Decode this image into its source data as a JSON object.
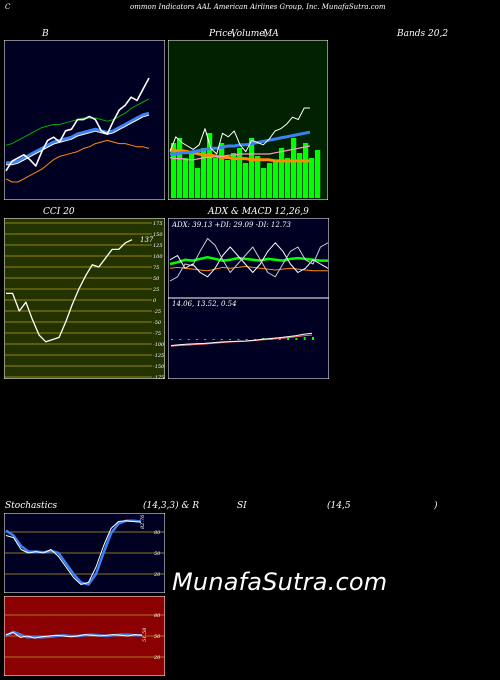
{
  "header": {
    "title": "Common Indicators AAL American Airlines Group, Inc. MunafaSutra.com",
    "part_c": "C",
    "part_rest": "ommon  Indicators AAL  American Airlines Group, Inc. MunafaSutra.com"
  },
  "titles": {
    "b": "B",
    "price_a": "Price,",
    "price_b": "Volume,",
    "price_c": "MA",
    "bands": "Bands 20,2",
    "cci": "CCI 20",
    "adx_macd": "ADX  & MACD 12,26,9",
    "stoch_a": "Stochastics",
    "stoch_b": "(14,3,3) & R",
    "stoch_c": "SI",
    "stoch_d": "(14,5",
    "stoch_e": ")"
  },
  "adx_text": "ADX: 39.13  +DI: 29.09 -DI: 12.73",
  "macd_text": "14.06,  13.52,  0.54",
  "cci_value_label": "137",
  "cci_ticks": [
    "175",
    "150",
    "125",
    "100",
    "75",
    "50",
    "25",
    "0",
    "-25",
    "-50",
    "-75",
    "-100",
    "-125",
    "-150",
    "-175"
  ],
  "stoch_ticks": [
    "80",
    "50",
    "20"
  ],
  "stoch_value_label": "82.76",
  "rsi_ticks": [
    "80",
    "50",
    "20"
  ],
  "rsi_value_label": "51.58",
  "brand": "MunafaSutra.com",
  "colors": {
    "green_panel": "#002200",
    "cci_bg": "#223300",
    "rsi_bg": "#8b0000",
    "navy": "#000022"
  },
  "chart_data": [
    {
      "type": "line",
      "name": "bollinger",
      "series": [
        {
          "values": [
            12,
            18,
            20,
            22,
            19,
            15,
            24,
            31,
            33,
            30,
            37,
            38,
            44,
            44,
            46,
            44,
            37,
            35,
            43,
            50,
            53,
            58,
            56,
            63,
            70
          ]
        },
        {
          "values": [
            28,
            29,
            31,
            33,
            35,
            37,
            39,
            40,
            41,
            41,
            42,
            43,
            44,
            45,
            45,
            45,
            44,
            43,
            44,
            46,
            48,
            51,
            53,
            55,
            57
          ]
        },
        {
          "values": [
            17,
            17,
            18,
            20,
            22,
            24,
            26,
            28,
            30,
            31,
            32,
            33,
            35,
            36,
            37,
            38,
            37,
            36,
            37,
            39,
            41,
            43,
            45,
            47,
            48
          ]
        },
        {
          "values": [
            7,
            5,
            5,
            7,
            9,
            11,
            13,
            16,
            19,
            21,
            22,
            23,
            24,
            26,
            27,
            29,
            30,
            31,
            30,
            29,
            29,
            28,
            27,
            27,
            26
          ]
        }
      ]
    },
    {
      "type": "line",
      "name": "price_ma",
      "series": [
        {
          "values": [
            42,
            55,
            50,
            47,
            44,
            48,
            62,
            45,
            40,
            58,
            55,
            60,
            48,
            42,
            52,
            50,
            48,
            53,
            60,
            62,
            66,
            72,
            70,
            80,
            80
          ]
        },
        {
          "values": [
            40,
            40,
            41,
            41,
            42,
            43,
            44,
            45,
            45,
            46,
            47,
            47,
            48,
            48,
            49,
            50,
            51,
            52,
            53,
            54,
            55,
            56,
            57,
            58,
            59
          ]
        },
        {
          "values": [
            37,
            36,
            36,
            35,
            35,
            36,
            37,
            37,
            38,
            38,
            39,
            39,
            40,
            40,
            40,
            40,
            40,
            40,
            41,
            42,
            43,
            44,
            45,
            46,
            47
          ]
        },
        {
          "values": [
            44,
            43,
            43,
            42,
            41,
            40,
            39,
            39,
            38,
            37,
            37,
            36,
            36,
            36,
            35,
            35,
            35,
            35,
            34,
            34,
            34,
            34,
            34,
            34,
            34
          ]
        }
      ],
      "volume": [
        55,
        60,
        40,
        45,
        30,
        50,
        65,
        40,
        55,
        38,
        45,
        50,
        35,
        60,
        42,
        30,
        35,
        38,
        50,
        40,
        60,
        45,
        55,
        40,
        48
      ]
    },
    {
      "type": "line",
      "name": "cci",
      "ylim": [
        -175,
        175
      ],
      "values": [
        15,
        15,
        -25,
        -5,
        -45,
        -80,
        -95,
        -90,
        -85,
        -50,
        -10,
        25,
        55,
        80,
        75,
        95,
        115,
        115,
        130,
        137
      ]
    },
    {
      "type": "line",
      "name": "adx",
      "series": [
        {
          "values": [
            20,
            25,
            40,
            38,
            55,
            70,
            62,
            45,
            30,
            40,
            50,
            60,
            45,
            30,
            25,
            40,
            55,
            60,
            45,
            40,
            60,
            65
          ]
        },
        {
          "values": [
            45,
            50,
            35,
            40,
            30,
            25,
            35,
            50,
            60,
            50,
            40,
            30,
            40,
            55,
            65,
            55,
            40,
            30,
            35,
            45,
            40,
            35
          ]
        },
        {
          "values": [
            40,
            42,
            45,
            44,
            46,
            48,
            46,
            44,
            45,
            47,
            46,
            45,
            44,
            46,
            45,
            44,
            46,
            47,
            46,
            45,
            44,
            44
          ]
        },
        {
          "values": [
            35,
            36,
            35,
            34,
            33,
            32,
            34,
            36,
            35,
            36,
            37,
            36,
            35,
            34,
            33,
            34,
            35,
            34,
            33,
            32,
            32,
            32
          ]
        }
      ]
    },
    {
      "type": "line",
      "name": "macd",
      "series": [
        {
          "values": [
            30,
            32,
            34,
            35,
            36,
            38,
            40,
            41,
            42,
            43,
            45,
            48,
            50,
            52,
            55,
            58,
            62,
            65
          ]
        },
        {
          "values": [
            28,
            30,
            31,
            33,
            34,
            36,
            38,
            40,
            41,
            42,
            44,
            46,
            48,
            50,
            52,
            55,
            58,
            60
          ]
        }
      ],
      "hist": [
        1,
        1,
        1,
        1,
        1,
        1,
        1,
        1,
        1,
        1,
        1,
        2,
        2,
        2,
        2,
        2,
        3,
        3
      ]
    },
    {
      "type": "line",
      "name": "stochastics",
      "ylim": [
        0,
        100
      ],
      "series": [
        {
          "values": [
            75,
            72,
            55,
            50,
            52,
            50,
            55,
            45,
            30,
            15,
            5,
            8,
            30,
            60,
            85,
            95,
            96,
            95,
            94
          ]
        },
        {
          "values": [
            82,
            75,
            60,
            52,
            52,
            51,
            53,
            50,
            35,
            20,
            8,
            5,
            20,
            50,
            78,
            92,
            96,
            96,
            95
          ]
        }
      ]
    },
    {
      "type": "line",
      "name": "rsi",
      "ylim": [
        0,
        100
      ],
      "series": [
        {
          "values": [
            52,
            55,
            48,
            50,
            47,
            49,
            50,
            51,
            50,
            49,
            50,
            52,
            51,
            50,
            51,
            52,
            51,
            50,
            52,
            51
          ]
        },
        {
          "values": [
            50,
            56,
            52,
            48,
            49,
            48,
            49,
            50,
            51,
            50,
            50,
            51,
            52,
            51,
            50,
            51,
            52,
            52,
            51,
            51
          ]
        }
      ]
    }
  ]
}
